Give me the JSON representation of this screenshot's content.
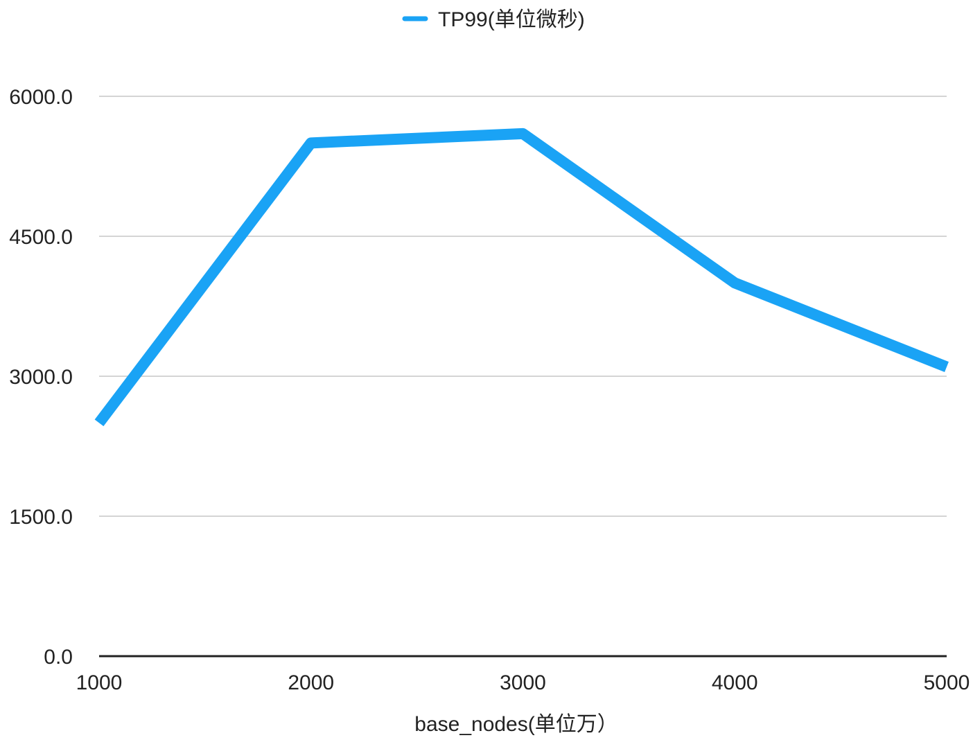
{
  "chart_data": {
    "type": "line",
    "x": [
      1000,
      2000,
      3000,
      4000,
      5000
    ],
    "x_tick_labels": [
      "1000",
      "2000",
      "3000",
      "4000",
      "5000"
    ],
    "y_ticks": [
      0,
      1500,
      3000,
      4500,
      6000
    ],
    "y_tick_labels": [
      "0.0",
      "1500.0",
      "3000.0",
      "4500.0",
      "6000.0"
    ],
    "ylim": [
      0,
      6000
    ],
    "xlim": [
      1000,
      5000
    ],
    "xlabel": "base_nodes(单位万）",
    "ylabel": "",
    "title": "",
    "grid": true,
    "legend_position": "top-center",
    "series": [
      {
        "name": "TP99(单位微秒)",
        "values": [
          2500,
          5500,
          5600,
          4000,
          3100
        ],
        "color": "#1aa3f5"
      }
    ]
  }
}
